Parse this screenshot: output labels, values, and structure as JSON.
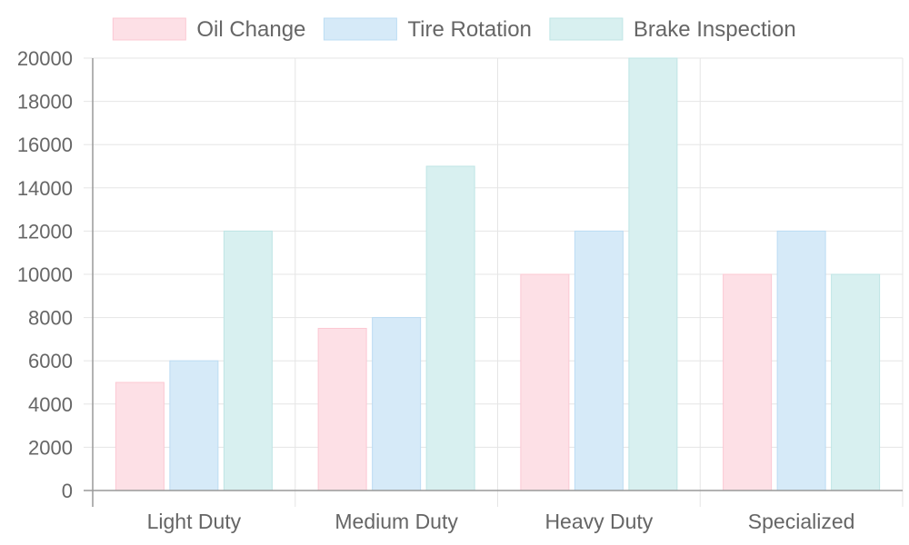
{
  "chart_data": {
    "type": "bar",
    "categories": [
      "Light Duty",
      "Medium Duty",
      "Heavy Duty",
      "Specialized"
    ],
    "series": [
      {
        "name": "Oil Change",
        "values": [
          5000,
          7500,
          10000,
          10000
        ],
        "fill": "#fde0e6",
        "stroke": "#fcc8d3"
      },
      {
        "name": "Tire Rotation",
        "values": [
          6000,
          8000,
          12000,
          12000
        ],
        "fill": "#d6eaf8",
        "stroke": "#bcdcf3"
      },
      {
        "name": "Brake Inspection",
        "values": [
          12000,
          15000,
          20000,
          10000
        ],
        "fill": "#d8f0f0",
        "stroke": "#bfe5e5"
      }
    ],
    "yticks": [
      "0",
      "2000",
      "4000",
      "6000",
      "8000",
      "10000",
      "12000",
      "14000",
      "16000",
      "18000",
      "20000"
    ],
    "ylim": [
      0,
      20000
    ],
    "legend_position": "top",
    "grid": true,
    "grid_color": "#e5e5e5",
    "axis_color": "#999999"
  }
}
